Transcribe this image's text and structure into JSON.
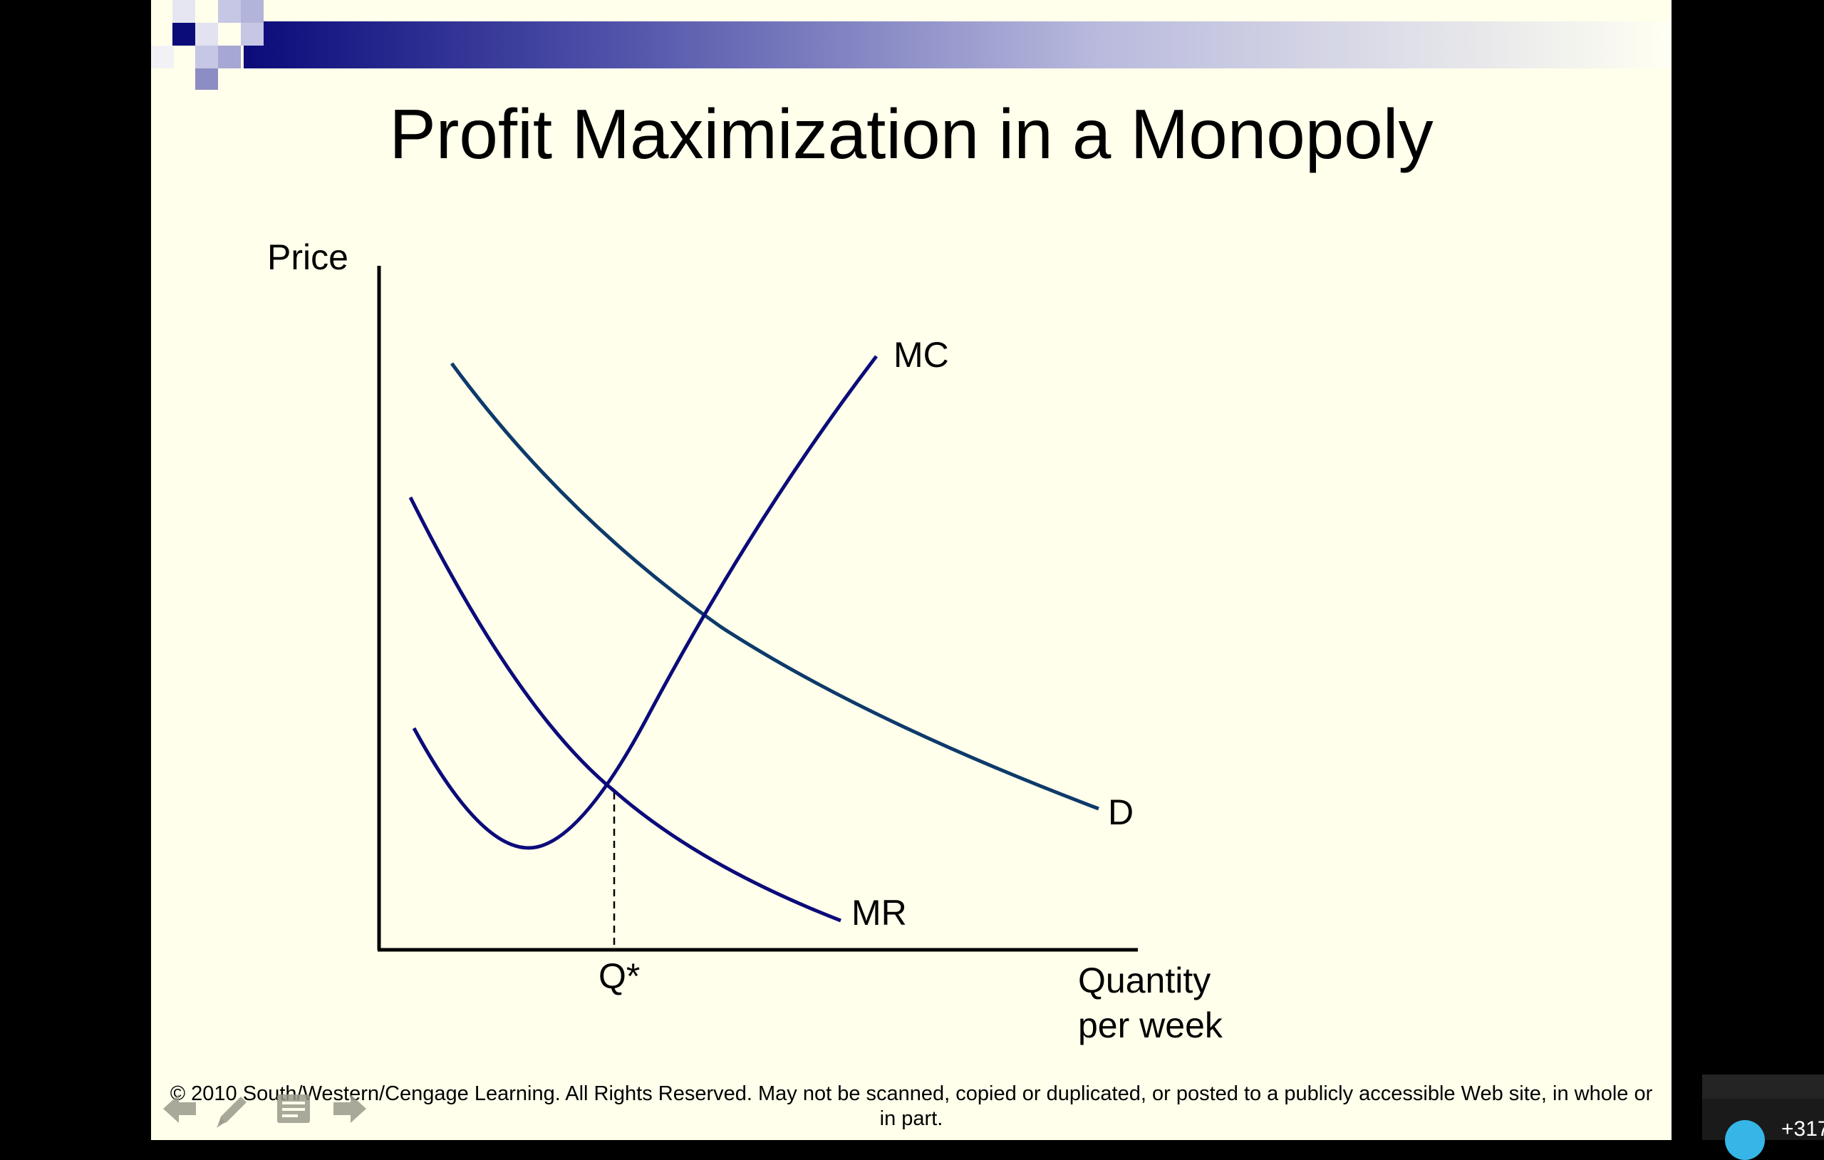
{
  "slide": {
    "title": "Profit Maximization in a Monopoly",
    "footer": "© 2010 South/Western/Cengage Learning. All Rights Reserved. May not be scanned, copied or duplicated, or posted to a publicly accessible Web site, in whole or in part."
  },
  "diagram": {
    "y_axis_label": "Price",
    "x_axis_label_line1": "Quantity",
    "x_axis_label_line2": "per week",
    "q_star_label": "Q*",
    "curves": {
      "mc": "MC",
      "d": "D",
      "mr": "MR"
    },
    "colors": {
      "demand": "#0E3A6B",
      "mc": "#0B0B7A",
      "mr": "#0B0B7A",
      "axes": "#000000"
    }
  },
  "toolbar": {
    "icons": [
      "arrow-left-icon",
      "pen-icon",
      "notes-icon",
      "arrow-right-icon"
    ]
  },
  "side_panel": {
    "count": "+317"
  }
}
